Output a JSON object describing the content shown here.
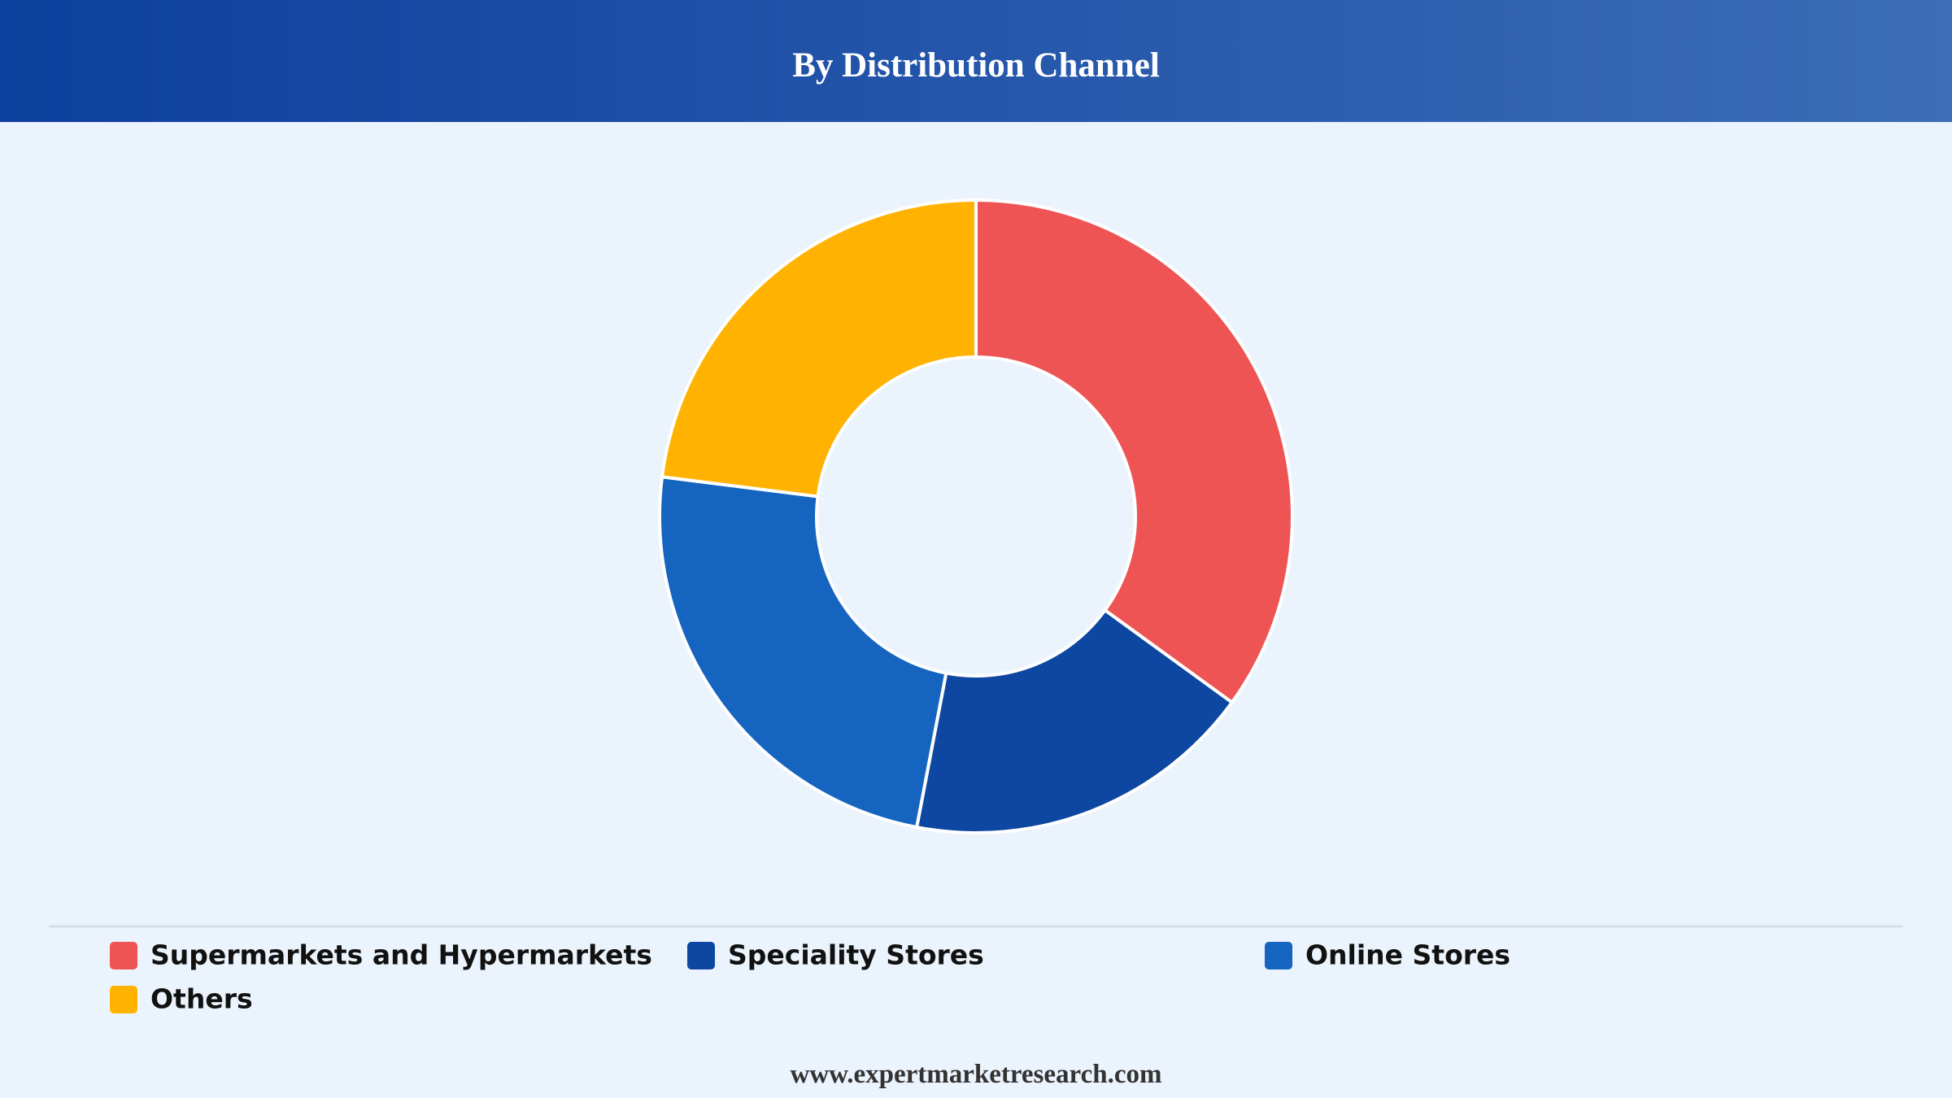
{
  "chart_data": {
    "type": "donut",
    "title": "By Distribution Channel",
    "categories": [
      "Supermarkets and Hypermarkets",
      "Speciality Stores",
      "Online Stores",
      "Others"
    ],
    "values": [
      35,
      18,
      24,
      23
    ],
    "colors": [
      "#ef5454",
      "#0d47a1",
      "#1565c0",
      "#ffb300"
    ],
    "legend": "bottom"
  },
  "footer": "www.expertmarketresearch.com"
}
